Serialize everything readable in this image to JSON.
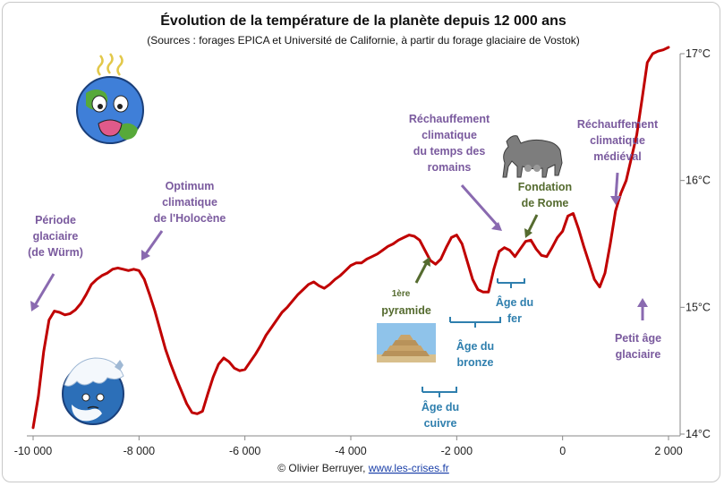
{
  "chart_data": {
    "type": "line",
    "title": "Évolution de la température de la planète depuis 12 000 ans",
    "subtitle": "(Sources : forages EPICA et Université de Californie, à partir du forage glaciaire de Vostok)",
    "xlim": [
      -10000,
      2000
    ],
    "ylim": [
      14,
      17
    ],
    "x_ticks": [
      -10000,
      -8000,
      -6000,
      -4000,
      -2000,
      0,
      2000
    ],
    "x_tick_labels": [
      "-10 000",
      "-8 000",
      "-6 000",
      "-4 000",
      "-2 000",
      "0",
      "2 000"
    ],
    "y_ticks": [
      14,
      15,
      16,
      17
    ],
    "y_tick_labels": [
      "14°C",
      "15°C",
      "16°C",
      "17°C"
    ],
    "y_axis_side": "right",
    "line_color": "#c00000",
    "series": [
      {
        "x": [
          -10000,
          -9900,
          -9800,
          -9700,
          -9600,
          -9500,
          -9400,
          -9300,
          -9200,
          -9100,
          -9000,
          -8900,
          -8800,
          -8700,
          -8600,
          -8500,
          -8400,
          -8300,
          -8200,
          -8100,
          -8000,
          -7900,
          -7800,
          -7700,
          -7600,
          -7500,
          -7400,
          -7300,
          -7200,
          -7100,
          -7000,
          -6900,
          -6800,
          -6700,
          -6600,
          -6500,
          -6400,
          -6300,
          -6200,
          -6100,
          -6000,
          -5900,
          -5800,
          -5700,
          -5600,
          -5500,
          -5400,
          -5300,
          -5200,
          -5100,
          -5000,
          -4900,
          -4800,
          -4700,
          -4600,
          -4500,
          -4400,
          -4300,
          -4200,
          -4100,
          -4000,
          -3900,
          -3800,
          -3700,
          -3600,
          -3500,
          -3400,
          -3300,
          -3200,
          -3100,
          -3000,
          -2900,
          -2800,
          -2700,
          -2600,
          -2500,
          -2400,
          -2300,
          -2200,
          -2100,
          -2000,
          -1900,
          -1800,
          -1700,
          -1600,
          -1500,
          -1400,
          -1300,
          -1200,
          -1100,
          -1000,
          -900,
          -800,
          -700,
          -600,
          -500,
          -400,
          -300,
          -200,
          -100,
          0,
          100,
          200,
          300,
          400,
          500,
          600,
          700,
          800,
          900,
          1000,
          1100,
          1200,
          1300,
          1400,
          1500,
          1600,
          1700,
          1800,
          1900,
          1950,
          2000
        ],
        "y": [
          14.05,
          14.3,
          14.65,
          14.9,
          14.97,
          14.96,
          14.94,
          14.95,
          14.98,
          15.03,
          15.1,
          15.18,
          15.22,
          15.25,
          15.27,
          15.3,
          15.31,
          15.3,
          15.29,
          15.3,
          15.29,
          15.22,
          15.1,
          14.97,
          14.82,
          14.67,
          14.55,
          14.44,
          14.34,
          14.24,
          14.17,
          14.16,
          14.18,
          14.32,
          14.45,
          14.55,
          14.6,
          14.57,
          14.52,
          14.5,
          14.51,
          14.57,
          14.63,
          14.7,
          14.78,
          14.84,
          14.9,
          14.96,
          15.0,
          15.05,
          15.1,
          15.14,
          15.18,
          15.2,
          15.17,
          15.15,
          15.18,
          15.22,
          15.25,
          15.29,
          15.33,
          15.35,
          15.35,
          15.38,
          15.4,
          15.42,
          15.45,
          15.48,
          15.5,
          15.53,
          15.55,
          15.57,
          15.56,
          15.53,
          15.45,
          15.37,
          15.34,
          15.38,
          15.47,
          15.55,
          15.57,
          15.5,
          15.36,
          15.22,
          15.14,
          15.12,
          15.12,
          15.3,
          15.44,
          15.47,
          15.45,
          15.4,
          15.46,
          15.52,
          15.53,
          15.46,
          15.41,
          15.4,
          15.47,
          15.55,
          15.6,
          15.72,
          15.74,
          15.62,
          15.48,
          15.35,
          15.22,
          15.16,
          15.27,
          15.5,
          15.76,
          15.9,
          16.0,
          16.18,
          16.36,
          16.64,
          16.93,
          17.0,
          17.02,
          17.03,
          17.04,
          17.05
        ]
      }
    ],
    "annotations": [
      {
        "text": [
          "Période",
          "glaciaire",
          "(de Würm)"
        ],
        "color": "#7a5a9e"
      },
      {
        "text": [
          "Optimum",
          "climatique",
          "de l'Holocène"
        ],
        "color": "#7a5a9e"
      },
      {
        "text": [
          "Réchauffement",
          "climatique",
          "du temps des",
          "romains"
        ],
        "color": "#7a5a9e"
      },
      {
        "text": [
          "Fondation",
          "de Rome"
        ],
        "color": "#556b2f"
      },
      {
        "text": [
          "Réchauffement",
          "climatique",
          "médiéval"
        ],
        "color": "#7a5a9e"
      },
      {
        "text": [
          "Petit âge",
          "glaciaire"
        ],
        "color": "#7a5a9e"
      },
      {
        "text": [
          "1ère",
          "pyramide"
        ],
        "color": "#556b2f"
      },
      {
        "text": [
          "Âge du",
          "fer"
        ],
        "color": "#2f7fae"
      },
      {
        "text": [
          "Âge du",
          "bronze"
        ],
        "color": "#2f7fae"
      },
      {
        "text": [
          "Âge du",
          "cuivre"
        ],
        "color": "#2f7fae"
      }
    ],
    "grid": false,
    "legend": "none"
  },
  "credit": {
    "author": "© Olivier Berruyer,",
    "link": "www.les-crises.fr"
  },
  "decorations": {
    "hot_earth": "sweating-earth-icon",
    "cold_earth": "frozen-earth-icon",
    "she_wolf": "capitoline-wolf-icon",
    "pyramid": "step-pyramid-icon"
  }
}
